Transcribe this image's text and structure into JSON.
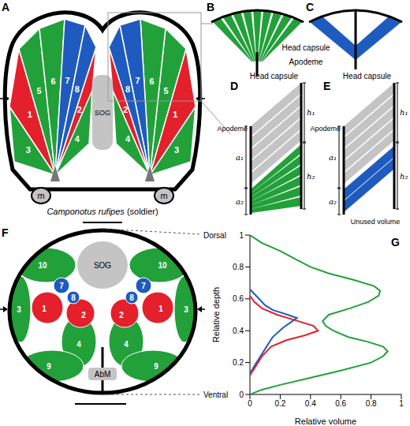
{
  "panel_labels": [
    "A",
    "B",
    "C",
    "D",
    "E",
    "F",
    "G"
  ],
  "A": {
    "species": "Camponotus rufipes",
    "caste": "(soldier)",
    "sog": "SOG",
    "mandible": "m",
    "muscles": [
      {
        "label": "3",
        "color": "green"
      },
      {
        "label": "1",
        "color": "red"
      },
      {
        "label": "5",
        "color": "green"
      },
      {
        "label": "6",
        "color": "green"
      },
      {
        "label": "7",
        "color": "blue"
      },
      {
        "label": "8",
        "color": "blue"
      },
      {
        "label": "2",
        "color": "red"
      },
      {
        "label": "4",
        "color": "green"
      }
    ]
  },
  "B_C": {
    "head_capsule": "Head capsule",
    "apodeme": "Apodeme"
  },
  "D": {
    "head_capsule": "Head capsule",
    "apodeme": "Apodeme",
    "h1": "h₁",
    "h2": "h₂",
    "a1": "a₁",
    "a2": "a₂"
  },
  "E": {
    "head_capsule": "Head capsule",
    "apodeme": "Apodeme",
    "h1": "h₁",
    "h2": "h₂",
    "a1": "a₁",
    "a2": "a₂",
    "unused": "Unused volume"
  },
  "F": {
    "sog": "SOG",
    "abm": "AbM",
    "muscles": [
      {
        "label": "10",
        "color": "green"
      },
      {
        "label": "3",
        "color": "green"
      },
      {
        "label": "1",
        "color": "red"
      },
      {
        "label": "7",
        "color": "blue"
      },
      {
        "label": "8",
        "color": "blue"
      },
      {
        "label": "2",
        "color": "red"
      },
      {
        "label": "4",
        "color": "green"
      },
      {
        "label": "9",
        "color": "green"
      }
    ]
  },
  "chart_data": {
    "type": "line",
    "x_label": "Relative volume",
    "y_label": "Relative depth",
    "xlim": [
      0,
      1
    ],
    "ylim": [
      0,
      1
    ],
    "xticks": [
      0,
      0.2,
      0.4,
      0.6,
      0.8,
      1
    ],
    "yticks": [
      0,
      0.2,
      0.4,
      0.6,
      0.8,
      1
    ],
    "annotations": [
      {
        "text": "Dorsal",
        "y": 1
      },
      {
        "text": "Ventral",
        "y": 0
      }
    ],
    "series": [
      {
        "color": "#22a03a",
        "x": [
          0,
          0.08,
          0.2,
          0.38,
          0.6,
          0.8,
          0.88,
          0.91,
          0.88,
          0.78,
          0.65,
          0.55,
          0.5,
          0.48,
          0.52,
          0.66,
          0.78,
          0.85,
          0.86,
          0.82,
          0.68,
          0.52,
          0.4,
          0.3,
          0.2,
          0.08,
          0
        ],
        "y": [
          0,
          0.03,
          0.06,
          0.1,
          0.15,
          0.2,
          0.24,
          0.27,
          0.3,
          0.33,
          0.36,
          0.4,
          0.43,
          0.46,
          0.5,
          0.54,
          0.58,
          0.62,
          0.65,
          0.68,
          0.72,
          0.76,
          0.8,
          0.85,
          0.9,
          0.95,
          1
        ]
      },
      {
        "color": "#1f5bbf",
        "x": [
          0,
          0.03,
          0.07,
          0.11,
          0.15,
          0.22,
          0.28,
          0.31,
          0.25,
          0.15,
          0.1,
          0.06,
          0.02,
          0
        ],
        "y": [
          0.13,
          0.18,
          0.24,
          0.3,
          0.36,
          0.42,
          0.46,
          0.48,
          0.5,
          0.53,
          0.56,
          0.6,
          0.64,
          0.66
        ]
      },
      {
        "color": "#e3202b",
        "x": [
          0,
          0.04,
          0.08,
          0.14,
          0.24,
          0.36,
          0.45,
          0.42,
          0.32,
          0.18,
          0.08,
          0.03,
          0
        ],
        "y": [
          0.12,
          0.18,
          0.24,
          0.3,
          0.34,
          0.37,
          0.4,
          0.43,
          0.46,
          0.5,
          0.54,
          0.58,
          0.62
        ]
      }
    ]
  }
}
